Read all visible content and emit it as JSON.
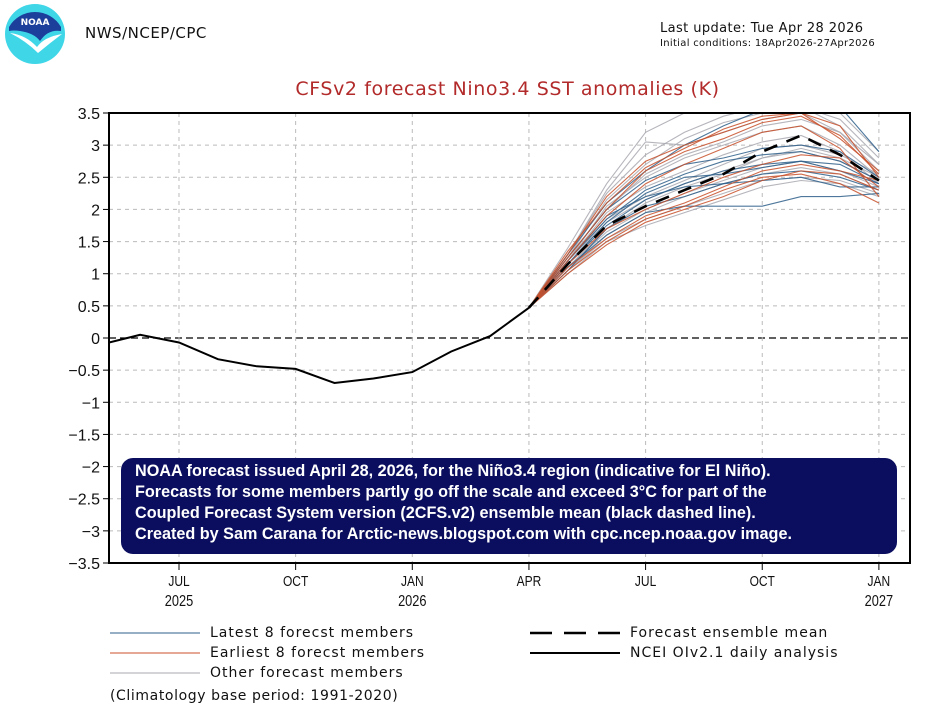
{
  "header": {
    "org": "NWS/NCEP/CPC",
    "logo_text": "NOAA",
    "last_update": "Last update: Tue Apr 28 2026",
    "initial_conditions": "Initial conditions: 18Apr2026-27Apr2026"
  },
  "colors": {
    "title": "#b22a2a",
    "latest_members": "#2e5f8a",
    "earliest_members": "#c8502a",
    "other_members": "#a8a8b0",
    "observed": "#000000",
    "mean": "#000000",
    "annotation_bg": "#0b0e5e",
    "logo_dark": "#1b3f9a",
    "logo_light": "#3fd6e8"
  },
  "annotation": {
    "lines": [
      "NOAA forecast issued April 28, 2026, for the Niño3.4 region (indicative for El Niño).",
      "Forecasts for some members partly go off the scale and exceed 3°C for part of the",
      "Coupled Forecast System version (2CFS.v2) ensemble mean (black dashed line).",
      "Created by Sam Carana for Arctic-news.blogspot.com with cpc.ncep.noaa.gov image."
    ]
  },
  "legend": {
    "latest": "Latest 8 forecst members",
    "earliest": "Earliest 8 forecst members",
    "other": "Other forecast members",
    "mean": "Forecast ensemble mean",
    "observed": "NCEI OIv2.1 daily analysis",
    "climatology": "(Climatology base period: 1991-2020)"
  },
  "chart_data": {
    "type": "line",
    "title": "CFSv2 forecast Nino3.4 SST anomalies (K)",
    "xlabel": "",
    "ylabel": "",
    "ylim": [
      -3.5,
      3.5
    ],
    "yticks": [
      3.5,
      3,
      2.5,
      2,
      1.5,
      1,
      0.5,
      0,
      -0.5,
      -1,
      -1.5,
      -2,
      -2.5,
      -3,
      -3.5
    ],
    "ytick_labels": [
      "3.5",
      "3",
      "2.5",
      "2",
      "1.5",
      "1",
      "0.5",
      "0",
      "-0.5",
      "-1",
      "-1.5",
      "-2",
      "-2.5",
      "-3",
      "-3.5"
    ],
    "xlim_months": [
      -0.8,
      19.8
    ],
    "x_month_index_note": "0 = Jun 2025",
    "xticks": [
      {
        "m": 1,
        "label": "JUL",
        "year": "2025"
      },
      {
        "m": 4,
        "label": "OCT",
        "year": ""
      },
      {
        "m": 7,
        "label": "JAN",
        "year": "2026"
      },
      {
        "m": 10,
        "label": "APR",
        "year": ""
      },
      {
        "m": 13,
        "label": "JUL",
        "year": ""
      },
      {
        "m": 16,
        "label": "OCT",
        "year": ""
      },
      {
        "m": 19,
        "label": "JAN",
        "year": "2027"
      }
    ],
    "grid": true,
    "zero_line": "dashed",
    "observed": {
      "name": "NCEI OIv2.1 daily analysis",
      "x": [
        -0.8,
        0,
        1,
        2,
        3,
        4,
        5,
        6,
        7,
        8,
        9,
        10
      ],
      "y": [
        -0.07,
        0.05,
        -0.07,
        -0.33,
        -0.44,
        -0.48,
        -0.7,
        -0.63,
        -0.53,
        -0.21,
        0.03,
        0.47
      ]
    },
    "ensemble_mean": {
      "name": "Forecast ensemble mean",
      "x": [
        10,
        11,
        12,
        13,
        14,
        15,
        16,
        17,
        18,
        19
      ],
      "y": [
        0.47,
        1.15,
        1.75,
        2.05,
        2.3,
        2.55,
        2.9,
        3.15,
        2.85,
        2.45
      ]
    },
    "members": [
      {
        "group": "latest",
        "y": [
          0.47,
          1.2,
          1.9,
          2.2,
          2.35,
          2.4,
          2.45,
          2.5,
          2.35,
          2.35
        ]
      },
      {
        "group": "latest",
        "y": [
          0.47,
          1.1,
          1.6,
          1.95,
          2.05,
          2.05,
          2.05,
          2.2,
          2.2,
          2.25
        ]
      },
      {
        "group": "latest",
        "y": [
          0.47,
          1.25,
          2.0,
          2.45,
          2.7,
          2.8,
          2.95,
          3.0,
          2.9,
          2.5
        ]
      },
      {
        "group": "latest",
        "y": [
          0.47,
          1.15,
          1.75,
          2.15,
          2.4,
          2.6,
          2.7,
          2.75,
          2.6,
          2.4
        ]
      },
      {
        "group": "latest",
        "y": [
          0.47,
          1.3,
          2.1,
          2.6,
          3.0,
          3.3,
          3.55,
          3.6,
          3.6,
          2.9
        ]
      },
      {
        "group": "latest",
        "y": [
          0.47,
          1.05,
          1.7,
          2.05,
          2.2,
          2.4,
          2.55,
          2.6,
          2.5,
          2.3
        ]
      },
      {
        "group": "latest",
        "y": [
          0.47,
          1.2,
          1.85,
          2.3,
          2.55,
          2.75,
          2.85,
          2.9,
          2.75,
          2.45
        ]
      },
      {
        "group": "latest",
        "y": [
          0.47,
          1.15,
          1.8,
          2.25,
          2.5,
          2.55,
          2.65,
          2.75,
          2.7,
          2.4
        ]
      },
      {
        "group": "earliest",
        "y": [
          0.47,
          1.3,
          2.2,
          2.75,
          3.0,
          3.2,
          3.4,
          3.5,
          3.1,
          2.6
        ]
      },
      {
        "group": "earliest",
        "y": [
          0.47,
          1.0,
          1.45,
          1.8,
          2.0,
          2.2,
          2.45,
          2.6,
          2.55,
          2.3
        ]
      },
      {
        "group": "earliest",
        "y": [
          0.47,
          1.25,
          2.0,
          2.6,
          2.9,
          3.1,
          3.35,
          3.45,
          3.15,
          2.55
        ]
      },
      {
        "group": "earliest",
        "y": [
          0.47,
          1.1,
          1.55,
          1.9,
          2.1,
          2.35,
          2.6,
          2.7,
          2.6,
          2.45
        ]
      },
      {
        "group": "earliest",
        "y": [
          0.47,
          1.2,
          1.9,
          2.4,
          2.7,
          2.95,
          3.2,
          3.3,
          2.95,
          2.2
        ]
      },
      {
        "group": "earliest",
        "y": [
          0.47,
          1.05,
          1.5,
          1.85,
          2.05,
          2.3,
          2.5,
          2.55,
          2.4,
          2.1
        ]
      },
      {
        "group": "earliest",
        "y": [
          0.47,
          1.35,
          2.1,
          2.65,
          2.95,
          3.25,
          3.45,
          3.5,
          3.3,
          2.5
        ]
      },
      {
        "group": "earliest",
        "y": [
          0.47,
          1.15,
          1.7,
          2.0,
          2.25,
          2.5,
          2.7,
          2.85,
          2.8,
          2.35
        ]
      },
      {
        "group": "other",
        "y": [
          0.47,
          1.4,
          2.4,
          3.2,
          3.5,
          3.6,
          3.7,
          3.6,
          3.3,
          2.7
        ]
      },
      {
        "group": "other",
        "y": [
          0.47,
          1.3,
          2.3,
          3.05,
          3.0,
          3.2,
          3.4,
          3.5,
          3.2,
          2.6
        ]
      },
      {
        "group": "other",
        "y": [
          0.47,
          1.2,
          2.05,
          2.5,
          2.8,
          3.0,
          3.2,
          3.3,
          3.0,
          2.5
        ]
      },
      {
        "group": "other",
        "y": [
          0.47,
          1.1,
          1.7,
          2.1,
          2.35,
          2.55,
          2.8,
          2.9,
          2.75,
          2.45
        ]
      },
      {
        "group": "other",
        "y": [
          0.47,
          1.0,
          1.5,
          1.75,
          1.95,
          2.15,
          2.35,
          2.45,
          2.4,
          2.2
        ]
      },
      {
        "group": "other",
        "y": [
          0.47,
          1.25,
          2.15,
          2.7,
          3.1,
          3.35,
          3.5,
          3.6,
          3.4,
          2.8
        ]
      },
      {
        "group": "other",
        "y": [
          0.47,
          1.15,
          1.85,
          2.2,
          2.45,
          2.7,
          2.95,
          3.0,
          2.85,
          2.55
        ]
      },
      {
        "group": "other",
        "y": [
          0.47,
          1.05,
          1.6,
          1.95,
          2.2,
          2.4,
          2.55,
          2.65,
          2.55,
          2.3
        ]
      },
      {
        "group": "other",
        "y": [
          0.47,
          1.2,
          1.95,
          2.35,
          2.6,
          2.85,
          3.05,
          3.15,
          2.9,
          2.4
        ]
      },
      {
        "group": "other",
        "y": [
          0.47,
          1.3,
          2.25,
          2.85,
          3.2,
          3.45,
          3.6,
          3.7,
          3.5,
          2.9
        ]
      },
      {
        "group": "other",
        "y": [
          0.47,
          1.1,
          1.65,
          2.0,
          2.25,
          2.45,
          2.65,
          2.75,
          2.6,
          2.35
        ]
      },
      {
        "group": "other",
        "y": [
          0.47,
          1.15,
          1.8,
          2.15,
          2.4,
          2.6,
          2.8,
          2.95,
          2.8,
          2.5
        ]
      },
      {
        "group": "other",
        "y": [
          0.47,
          1.05,
          1.55,
          1.85,
          2.05,
          2.25,
          2.45,
          2.5,
          2.45,
          2.25
        ]
      },
      {
        "group": "other",
        "y": [
          0.47,
          1.25,
          2.0,
          2.55,
          2.85,
          3.05,
          3.3,
          3.4,
          3.2,
          2.7
        ]
      }
    ]
  }
}
